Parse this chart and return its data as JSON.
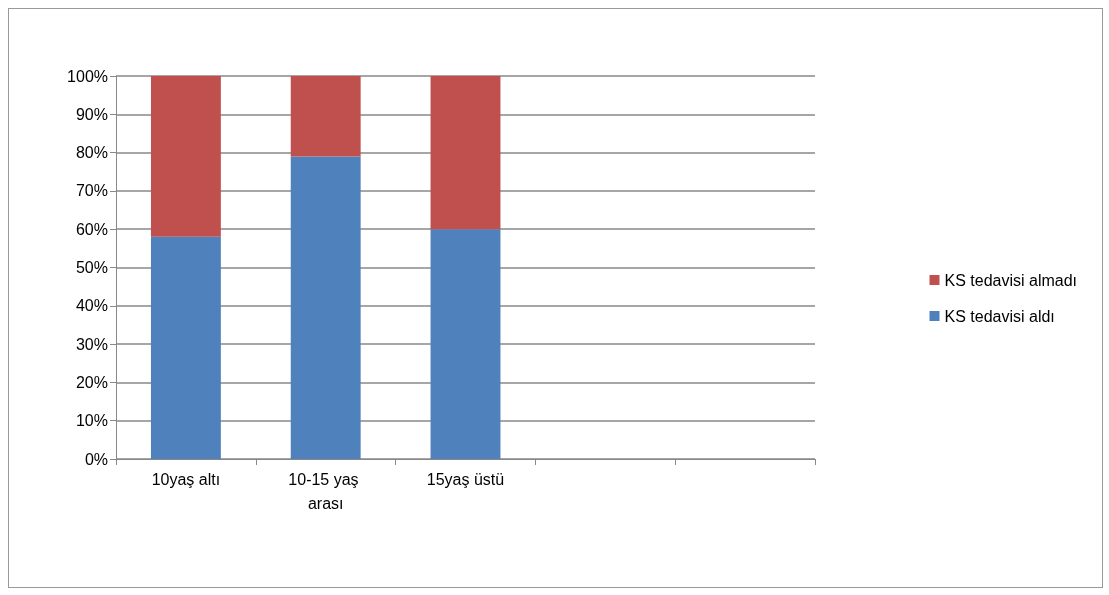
{
  "chart_data": {
    "type": "bar",
    "stacked": true,
    "categories": [
      "10yaş altı",
      "10-15 yaş arası",
      "15yaş üstü",
      null,
      null
    ],
    "series": [
      {
        "name": "KS tedavisi aldı",
        "color": "#4f81bd",
        "values": [
          58,
          79,
          60,
          null,
          null
        ]
      },
      {
        "name": "KS tedavisi almadı",
        "color": "#c0504d",
        "values": [
          42,
          21,
          40,
          null,
          null
        ]
      }
    ],
    "ylim": [
      0,
      100
    ],
    "yticks": [
      {
        "value": 0,
        "label": "0%"
      },
      {
        "value": 10,
        "label": "10%"
      },
      {
        "value": 20,
        "label": "20%"
      },
      {
        "value": 30,
        "label": "30%"
      },
      {
        "value": 40,
        "label": "40%"
      },
      {
        "value": 50,
        "label": "50%"
      },
      {
        "value": 60,
        "label": "60%"
      },
      {
        "value": 70,
        "label": "70%"
      },
      {
        "value": 80,
        "label": "80%"
      },
      {
        "value": 90,
        "label": "90%"
      },
      {
        "value": 100,
        "label": "100%"
      }
    ],
    "grid": "y",
    "legend": "right"
  }
}
